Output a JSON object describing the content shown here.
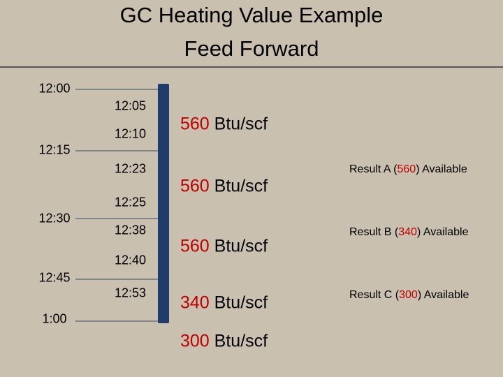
{
  "title": {
    "line1": "GC Heating Value Example",
    "line2": "Feed Forward"
  },
  "left_times": [
    "12:00",
    "12:15",
    "12:30",
    "12:45",
    "1:00"
  ],
  "mid_times": [
    "12:05",
    "12:10",
    "12:23",
    "12:25",
    "12:38",
    "12:40",
    "12:53"
  ],
  "readings": [
    {
      "value": "560",
      "unit": "Btu/scf"
    },
    {
      "value": "560",
      "unit": "Btu/scf"
    },
    {
      "value": "560",
      "unit": "Btu/scf"
    },
    {
      "value": "340",
      "unit": "Btu/scf"
    },
    {
      "value": "300",
      "unit": "Btu/scf"
    }
  ],
  "results": [
    {
      "prefix": "Result A (",
      "value": "560",
      "suffix": ") Available"
    },
    {
      "prefix": "Result B (",
      "value": "340",
      "suffix": ") Available"
    },
    {
      "prefix": "Result C (",
      "value": "300",
      "suffix": ") Available"
    }
  ]
}
